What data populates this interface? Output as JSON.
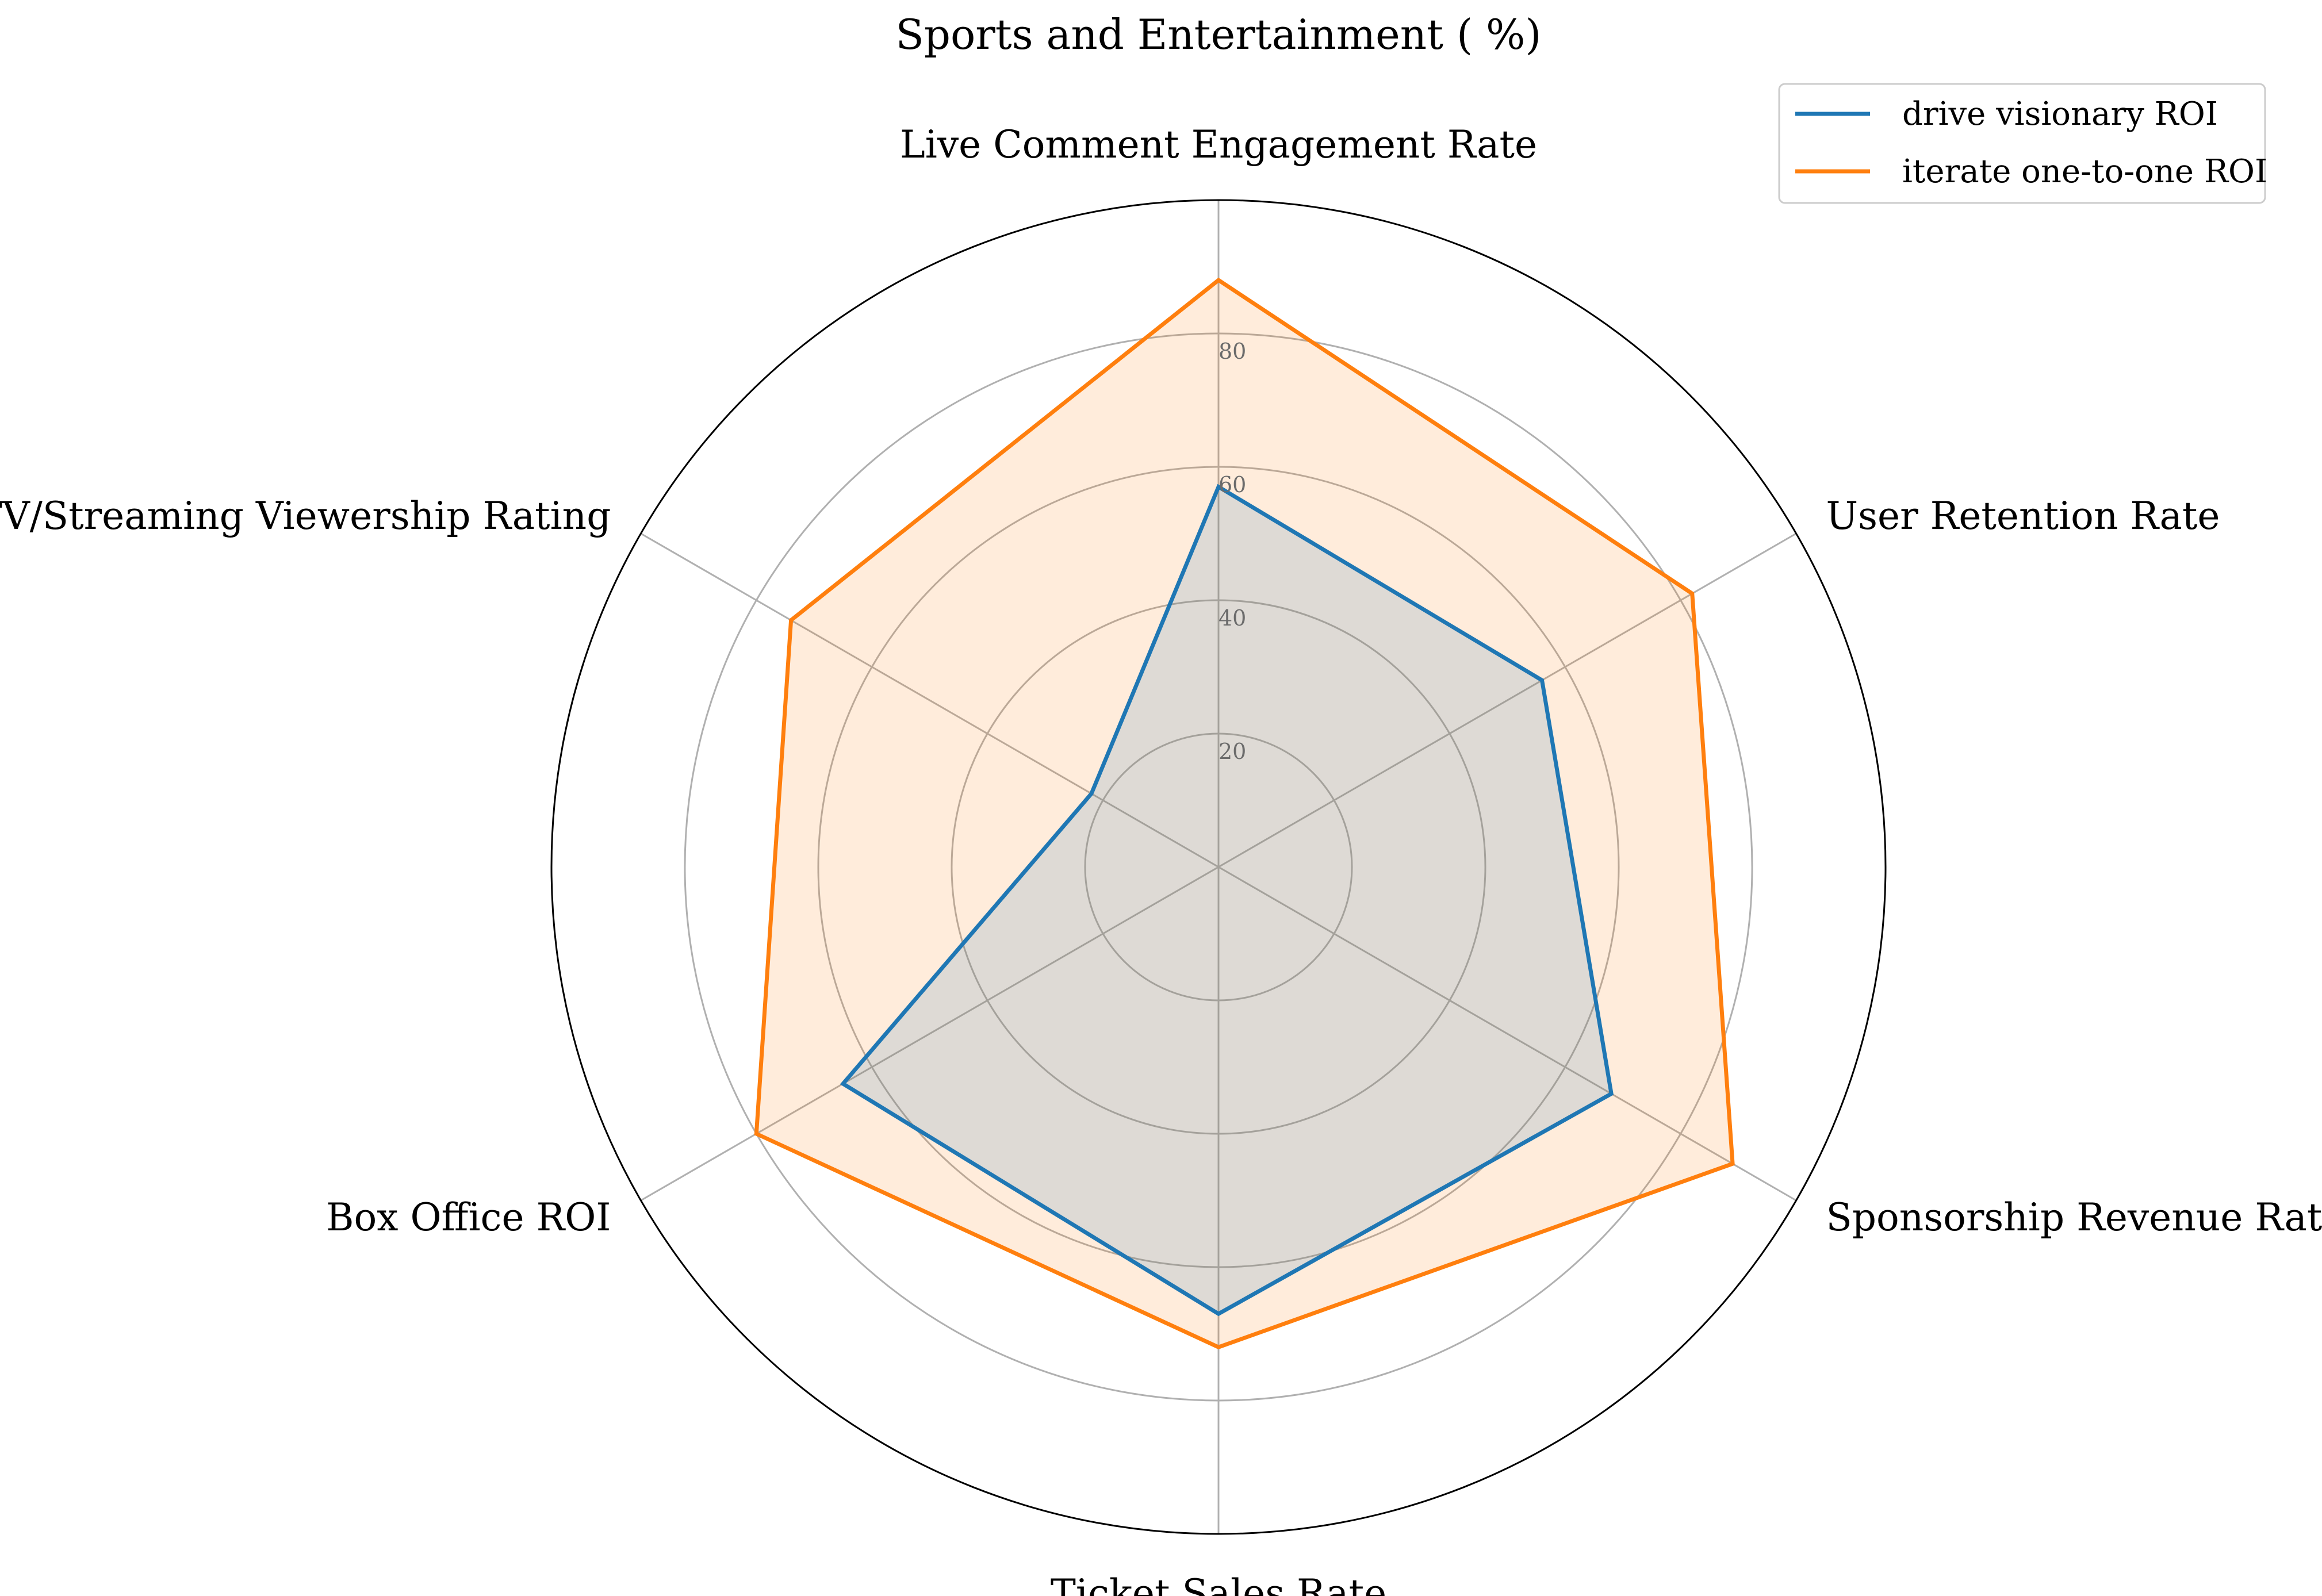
{
  "chart_data": {
    "type": "radar",
    "title": "Sports and Entertainment ( %)",
    "axes": [
      "Live Comment Engagement Rate",
      "User Retention Rate",
      "Sponsorship Revenue Ratio",
      "Ticket Sales Rate",
      "Box Office ROI",
      "TV/Streaming Viewership Rating"
    ],
    "radial_ticks": [
      20,
      40,
      60,
      80
    ],
    "rlim": [
      0,
      100
    ],
    "grid": true,
    "legend_position": "top-right",
    "series": [
      {
        "name": "drive visionary ROI",
        "color": "#1f77b4",
        "values": [
          57,
          56,
          68,
          67,
          65,
          22
        ]
      },
      {
        "name": "iterate one-to-one ROI",
        "color": "#ff7f0e",
        "values": [
          88,
          82,
          89,
          72,
          80,
          74
        ]
      }
    ]
  }
}
